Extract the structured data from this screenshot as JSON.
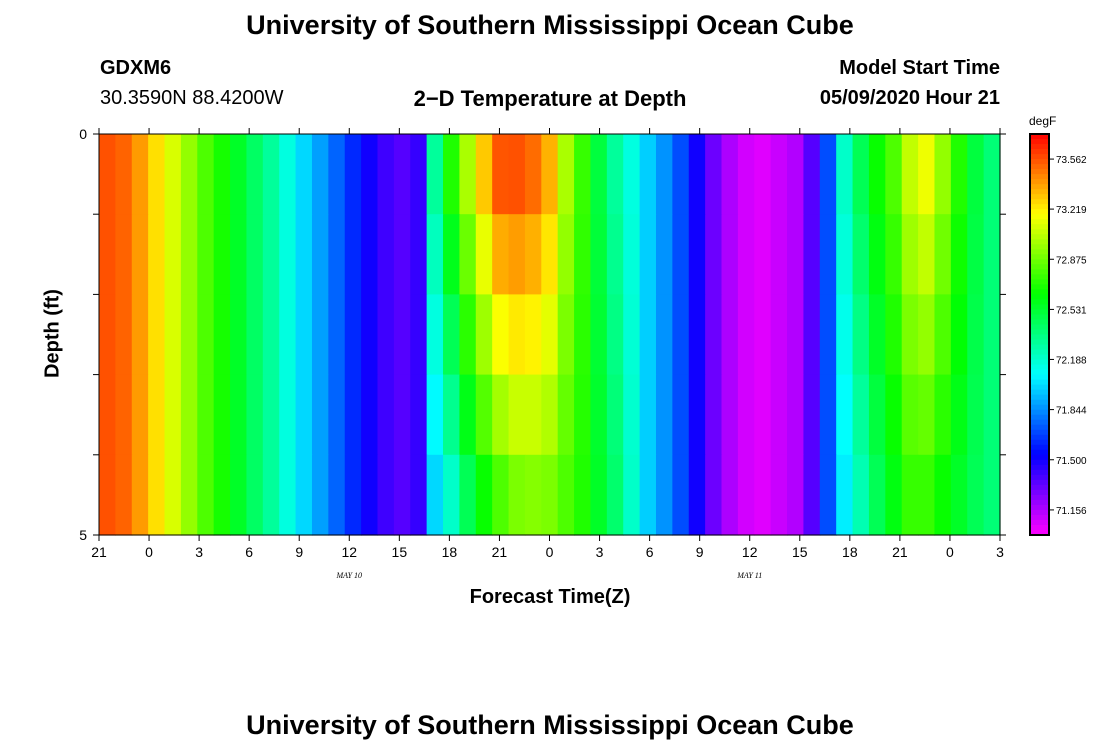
{
  "header": {
    "title": "University of Southern Mississippi Ocean Cube",
    "station": "GDXM6",
    "coords": "30.3590N 88.4200W",
    "plot_title": "2−D Temperature at Depth",
    "start_label": "Model Start Time",
    "start_value": "05/09/2020 Hour 21"
  },
  "footer": {
    "title": "University of Southern Mississippi Ocean Cube"
  },
  "chart_data": {
    "type": "heatmap",
    "title": "2−D Temperature at Depth",
    "xlabel": "Forecast Time(Z)",
    "ylabel": "Depth (ft)",
    "x_tick_labels": [
      "21",
      "0",
      "3",
      "6",
      "9",
      "12",
      "15",
      "18",
      "21",
      "0",
      "3",
      "6",
      "9",
      "12",
      "15",
      "18",
      "21",
      "0",
      "3"
    ],
    "date_labels": [
      {
        "label": "MAY  10",
        "at_tick": 5
      },
      {
        "label": "MAY  11",
        "at_tick": 13
      }
    ],
    "y_tick_labels": [
      "0",
      "5"
    ],
    "ylim": [
      0,
      5
    ],
    "colorbar": {
      "unit": "degF",
      "min": 70.984,
      "max": 73.734,
      "tick_values": [
        "73.562",
        "73.219",
        "72.875",
        "72.531",
        "72.188",
        "71.844",
        "71.500",
        "71.156"
      ]
    },
    "time_steps_hours": 54,
    "depth_levels": [
      0.5,
      1.5,
      2.5,
      3.5,
      4.5
    ],
    "surface_profile": [
      73.56,
      73.52,
      73.4,
      73.25,
      73.1,
      72.95,
      72.8,
      72.68,
      72.55,
      72.42,
      72.3,
      72.15,
      72.0,
      71.88,
      71.75,
      71.62,
      71.5,
      71.4,
      71.35,
      71.42,
      72.3,
      72.7,
      73.0,
      73.3,
      73.55,
      73.56,
      73.5,
      73.35,
      73.0,
      72.75,
      72.5,
      72.3,
      72.15,
      71.98,
      71.85,
      71.7,
      71.5,
      71.3,
      71.16,
      71.08,
      71.05,
      71.1,
      71.15,
      71.35,
      71.7,
      72.2,
      72.45,
      72.65,
      72.8,
      73.05,
      73.15,
      72.95,
      72.7,
      72.5,
      72.38
    ],
    "bottom_profile": [
      73.56,
      73.52,
      73.4,
      73.25,
      73.1,
      72.95,
      72.8,
      72.68,
      72.55,
      72.42,
      72.3,
      72.15,
      72.0,
      71.88,
      71.75,
      71.62,
      71.5,
      71.4,
      71.35,
      71.42,
      72.0,
      72.2,
      72.45,
      72.65,
      72.8,
      72.9,
      72.92,
      72.9,
      72.8,
      72.7,
      72.55,
      72.4,
      72.2,
      71.98,
      71.85,
      71.7,
      71.5,
      71.3,
      71.16,
      71.08,
      71.05,
      71.1,
      71.15,
      71.35,
      71.7,
      72.05,
      72.25,
      72.45,
      72.6,
      72.75,
      72.75,
      72.65,
      72.55,
      72.45,
      72.38
    ]
  }
}
